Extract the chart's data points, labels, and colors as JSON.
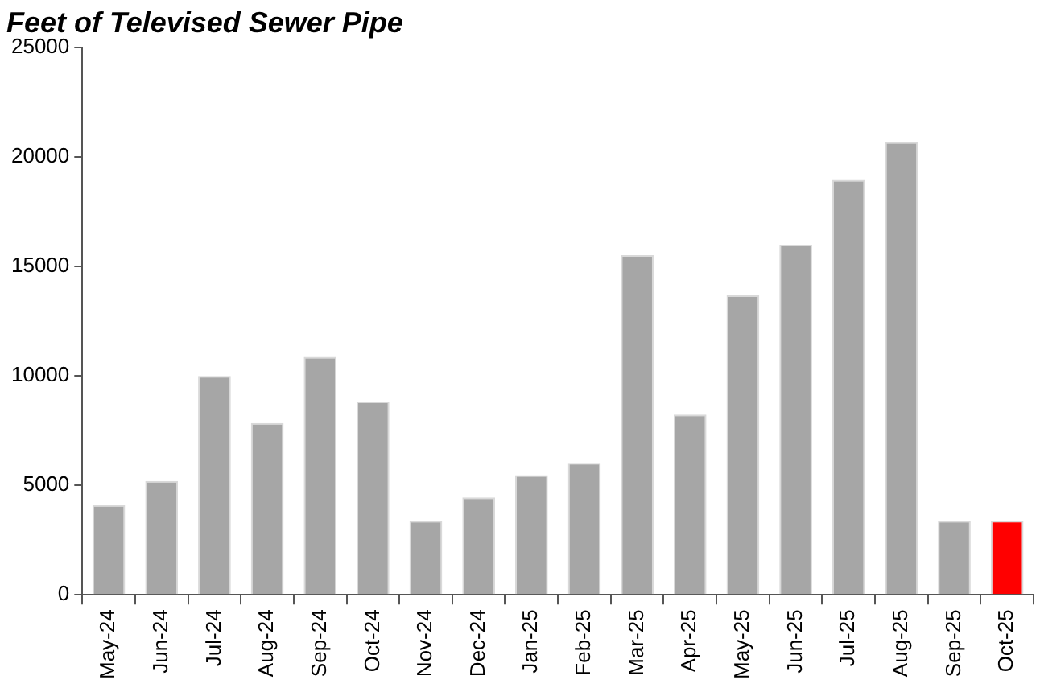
{
  "chart_data": {
    "type": "bar",
    "title": "Feet of Televised Sewer Pipe",
    "categories": [
      "May-24",
      "Jun-24",
      "Jul-24",
      "Aug-24",
      "Sep-24",
      "Oct-24",
      "Nov-24",
      "Dec-24",
      "Jan-25",
      "Feb-25",
      "Mar-25",
      "Apr-25",
      "May-25",
      "Jun-25",
      "Jul-25",
      "Aug-25",
      "Sep-25",
      "Oct-25"
    ],
    "values": [
      4100,
      5200,
      10000,
      7850,
      10870,
      8830,
      3380,
      4450,
      5470,
      6030,
      15520,
      8240,
      13690,
      16000,
      18960,
      20690,
      3380,
      3380
    ],
    "colors": [
      "#a6a6a6",
      "#a6a6a6",
      "#a6a6a6",
      "#a6a6a6",
      "#a6a6a6",
      "#a6a6a6",
      "#a6a6a6",
      "#a6a6a6",
      "#a6a6a6",
      "#a6a6a6",
      "#a6a6a6",
      "#a6a6a6",
      "#a6a6a6",
      "#a6a6a6",
      "#a6a6a6",
      "#a6a6a6",
      "#a6a6a6",
      "#ff0000"
    ],
    "ylim": [
      0,
      25000
    ],
    "yticks": [
      0,
      5000,
      10000,
      15000,
      20000,
      25000
    ],
    "grid": false,
    "legend": false
  }
}
